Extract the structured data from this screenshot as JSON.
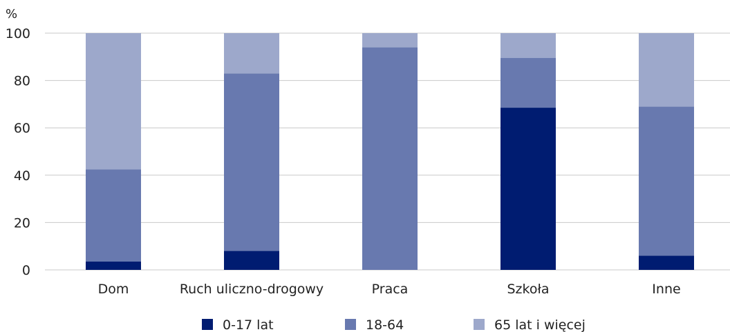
{
  "chart_data": {
    "type": "bar",
    "stacked": true,
    "unit_label": "%",
    "categories": [
      "Dom",
      "Ruch uliczno-drogowy",
      "Praca",
      "Szkoła",
      "Inne"
    ],
    "series": [
      {
        "name": "0-17 lat",
        "color": "#001c71",
        "values": [
          3.5,
          8,
          0,
          68.5,
          6
        ]
      },
      {
        "name": "18-64",
        "color": "#6879af",
        "values": [
          39,
          75,
          94,
          21,
          63
        ]
      },
      {
        "name": "65 lat i więcej",
        "color": "#9da8cb",
        "values": [
          57.5,
          17,
          6,
          10.5,
          31
        ]
      }
    ],
    "yticks": [
      0,
      20,
      40,
      60,
      80,
      100
    ],
    "ylim": [
      0,
      100
    ],
    "grid": true,
    "legend_position": "bottom"
  }
}
